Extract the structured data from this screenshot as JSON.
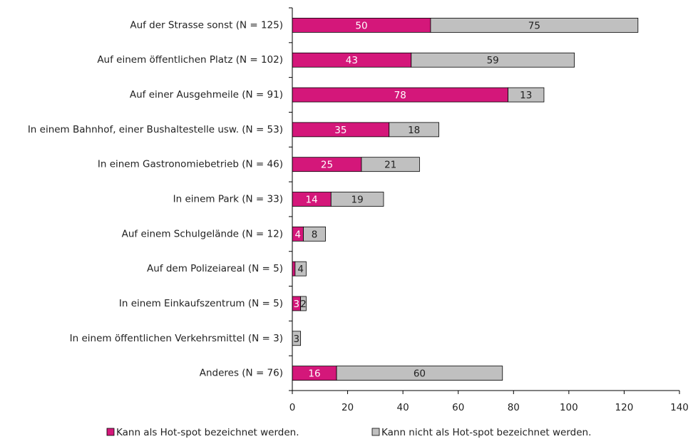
{
  "chart_data": {
    "type": "stacked-bar-horizontal",
    "categories": [
      "Auf der Strasse sonst (N = 125)",
      "Auf einem öffentlichen Platz (N = 102)",
      "Auf einer Ausgehmeile (N = 91)",
      "In einem Bahnhof, einer Bushaltestelle usw. (N = 53)",
      "In einem Gastronomiebetrieb (N = 46)",
      "In einem Park (N = 33)",
      "Auf einem Schulgelände (N = 12)",
      "Auf dem Polizeiareal (N = 5)",
      "In einem Einkaufszentrum (N = 5)",
      "In einem öffentlichen Verkehrsmittel (N = 3)",
      "Anderes (N = 76)"
    ],
    "series": [
      {
        "name": "Kann als Hot-spot bezeichnet werden.",
        "color": "#d4177a",
        "label_color": "#ffffff",
        "values": [
          50,
          43,
          78,
          35,
          25,
          14,
          4,
          1,
          3,
          0,
          16
        ]
      },
      {
        "name": "Kann nicht als Hot-spot bezeichnet werden.",
        "color": "#c0c0c0",
        "label_color": "#222222",
        "values": [
          75,
          59,
          13,
          18,
          21,
          19,
          8,
          4,
          2,
          3,
          60
        ]
      }
    ],
    "xlim": [
      0,
      140
    ],
    "xticks": [
      0,
      20,
      40,
      60,
      80,
      100,
      120,
      140
    ],
    "legend": "bottom"
  }
}
